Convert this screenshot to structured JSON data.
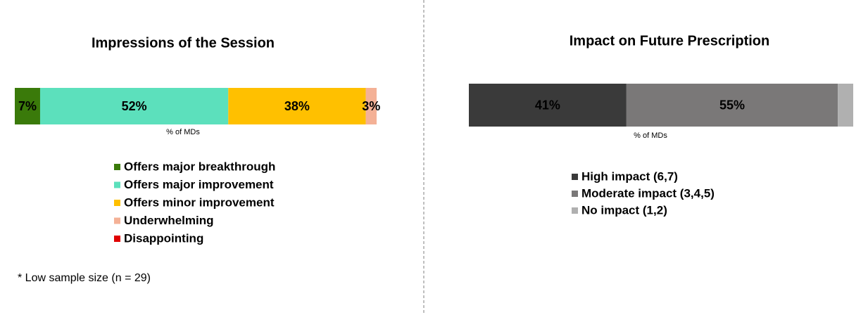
{
  "chart_data": [
    {
      "type": "stacked_bar",
      "title": "Impressions of the Session",
      "x_label": "% of MDs",
      "xlim": [
        0,
        100
      ],
      "series": [
        {
          "name": "Offers major breakthrough",
          "color": "#3a7a0a",
          "values": [
            7
          ],
          "value_labels": [
            "7%"
          ]
        },
        {
          "name": "Offers major improvement",
          "color": "#5ce0bc",
          "values": [
            52
          ],
          "value_labels": [
            "52%"
          ]
        },
        {
          "name": "Offers minor improvement",
          "color": "#ffc000",
          "values": [
            38
          ],
          "value_labels": [
            "38%"
          ]
        },
        {
          "name": "Underwhelming",
          "color": "#f4b196",
          "values": [
            3
          ],
          "value_labels": [
            "3%"
          ]
        },
        {
          "name": "Disappointing",
          "color": "#e00000",
          "values": [
            0
          ]
        }
      ],
      "note": "* Low sample size (n = 29)"
    },
    {
      "type": "stacked_bar",
      "title": "Impact on Future Prescription",
      "x_label": "% of MDs",
      "xlim": [
        0,
        100
      ],
      "series": [
        {
          "name": "High impact (6,7)",
          "color": "#3a3a3a",
          "values": [
            41
          ],
          "value_labels": [
            "41%"
          ]
        },
        {
          "name": "Moderate impact (3,4,5)",
          "color": "#7a7878",
          "values": [
            55
          ],
          "value_labels": [
            "55%"
          ]
        },
        {
          "name": "No impact (1,2)",
          "color": "#b0b0b0",
          "values": [
            4
          ]
        }
      ]
    }
  ]
}
